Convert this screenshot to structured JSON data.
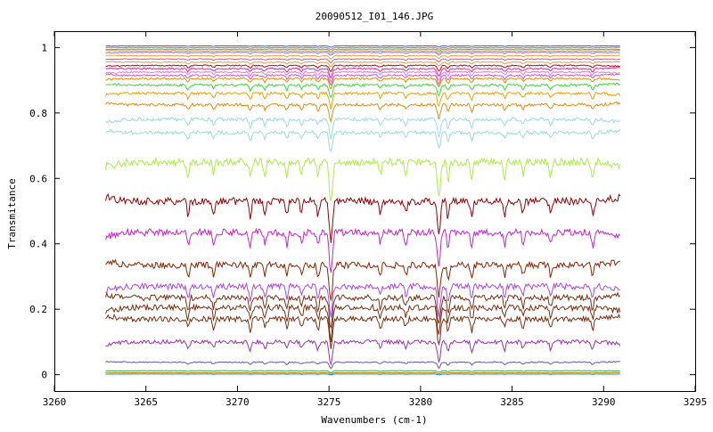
{
  "chart_data": {
    "type": "line",
    "title": "20090512_I01_146.JPG",
    "xlabel": "Wavenumbers (cm-1)",
    "ylabel": "Transmitance",
    "xlim": [
      3260,
      3295
    ],
    "ylim": [
      -0.05,
      1.05
    ],
    "xticks": [
      3260,
      3265,
      3270,
      3275,
      3280,
      3285,
      3290,
      3295
    ],
    "yticks": [
      0,
      0.2,
      0.4,
      0.6,
      0.8,
      1
    ],
    "ytick_labels": [
      "0",
      "0.2",
      "0.4",
      "0.6",
      "0.8",
      "1"
    ],
    "grid": false,
    "x_range": [
      3262.8,
      3290.9
    ],
    "dips": [
      {
        "x": 3267.3,
        "depth": 0.35
      },
      {
        "x": 3268.7,
        "depth": 0.3
      },
      {
        "x": 3270.7,
        "depth": 0.4
      },
      {
        "x": 3271.5,
        "depth": 0.3
      },
      {
        "x": 3272.7,
        "depth": 0.35
      },
      {
        "x": 3273.5,
        "depth": 0.3
      },
      {
        "x": 3274.4,
        "depth": 0.35
      },
      {
        "x": 3275.1,
        "depth": 1.0
      },
      {
        "x": 3277.8,
        "depth": 0.3
      },
      {
        "x": 3279.2,
        "depth": 0.3
      },
      {
        "x": 3281.0,
        "depth": 0.85
      },
      {
        "x": 3281.5,
        "depth": 0.45
      },
      {
        "x": 3282.8,
        "depth": 0.4
      },
      {
        "x": 3284.6,
        "depth": 0.35
      },
      {
        "x": 3285.6,
        "depth": 0.3
      },
      {
        "x": 3287.1,
        "depth": 0.3
      },
      {
        "x": 3289.4,
        "depth": 0.35
      }
    ],
    "series": [
      {
        "color": "#2a6fd6",
        "baseline": 1.005,
        "amplitude": 0.004
      },
      {
        "color": "#e06666",
        "baseline": 1.0,
        "amplitude": 0.006
      },
      {
        "color": "#4caf50",
        "baseline": 0.995,
        "amplitude": 0.007
      },
      {
        "color": "#cc9933",
        "baseline": 0.99,
        "amplitude": 0.008
      },
      {
        "color": "#9966cc",
        "baseline": 0.985,
        "amplitude": 0.009
      },
      {
        "color": "#e6a040",
        "baseline": 0.975,
        "amplitude": 0.01
      },
      {
        "color": "#cc6677",
        "baseline": 0.965,
        "amplitude": 0.012
      },
      {
        "color": "#d9a050",
        "baseline": 0.955,
        "amplitude": 0.014
      },
      {
        "color": "#cc0000",
        "baseline": 0.945,
        "amplitude": 0.02
      },
      {
        "color": "#dd22aa",
        "baseline": 0.935,
        "amplitude": 0.025
      },
      {
        "color": "#ee77cc",
        "baseline": 0.925,
        "amplitude": 0.028
      },
      {
        "color": "#cc55cc",
        "baseline": 0.915,
        "amplitude": 0.03
      },
      {
        "color": "#e68a00",
        "baseline": 0.905,
        "amplitude": 0.032
      },
      {
        "color": "#33dd33",
        "baseline": 0.885,
        "amplitude": 0.04
      },
      {
        "color": "#f0a000",
        "baseline": 0.86,
        "amplitude": 0.045
      },
      {
        "color": "#e08c10",
        "baseline": 0.825,
        "amplitude": 0.05
      },
      {
        "color": "#99dddd",
        "baseline": 0.78,
        "amplitude": 0.06
      },
      {
        "color": "#99dddd",
        "baseline": 0.74,
        "amplitude": 0.06
      },
      {
        "color": "#aaee44",
        "baseline": 0.65,
        "amplitude": 0.13
      },
      {
        "color": "#990000",
        "baseline": 0.53,
        "amplitude": 0.12
      },
      {
        "color": "#cc22cc",
        "baseline": 0.435,
        "amplitude": 0.12
      },
      {
        "color": "#8b2500",
        "baseline": 0.335,
        "amplitude": 0.11
      },
      {
        "color": "#aa44ee",
        "baseline": 0.27,
        "amplitude": 0.1
      },
      {
        "color": "#7a2e10",
        "baseline": 0.235,
        "amplitude": 0.1
      },
      {
        "color": "#7a2e10",
        "baseline": 0.205,
        "amplitude": 0.1
      },
      {
        "color": "#7a2e10",
        "baseline": 0.17,
        "amplitude": 0.09
      },
      {
        "color": "#9933aa",
        "baseline": 0.1,
        "amplitude": 0.07
      },
      {
        "color": "#6655aa",
        "baseline": 0.038,
        "amplitude": 0.02
      },
      {
        "color": "#33aa55",
        "baseline": 0.012,
        "amplitude": 0.006
      },
      {
        "color": "#cc8800",
        "baseline": 0.006,
        "amplitude": 0.004
      },
      {
        "color": "#2288dd",
        "baseline": 0.002,
        "amplitude": 0.003
      }
    ]
  }
}
